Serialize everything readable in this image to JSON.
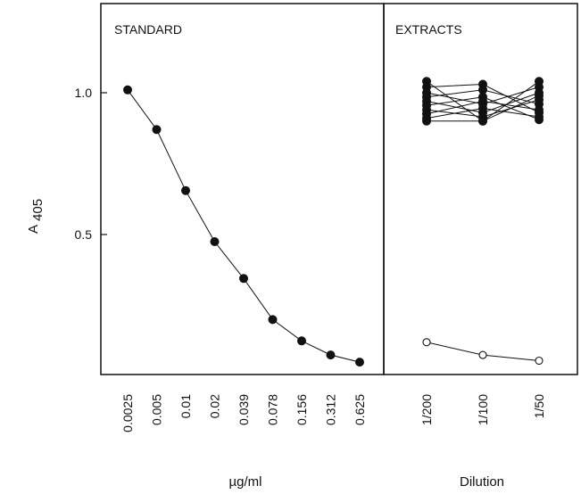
{
  "chart_data": {
    "type": "line",
    "ylabel_main": "A",
    "ylabel_sub": "405",
    "y_ticks": [
      {
        "value": 1.0,
        "label": "1.0"
      },
      {
        "value": 0.5,
        "label": "0.5"
      }
    ],
    "ylim": [
      0,
      1.3
    ],
    "panels": [
      {
        "id": "standard",
        "title": "STANDARD",
        "xlabel": "µg/ml",
        "categories": [
          "0.0025",
          "0.005",
          "0.01",
          "0.02",
          "0.039",
          "0.078",
          "0.156",
          "0.312",
          "0.625"
        ],
        "series": [
          {
            "marker": "filled",
            "values": [
              1.01,
              0.87,
              0.655,
              0.475,
              0.345,
              0.2,
              0.125,
              0.075,
              0.05
            ]
          }
        ]
      },
      {
        "id": "extracts",
        "title": "EXTRACTS",
        "xlabel": "Dilution",
        "categories": [
          "1/200",
          "1/100",
          "1/50"
        ],
        "series": [
          {
            "marker": "filled",
            "values": [
              1.04,
              0.9,
              1.04
            ]
          },
          {
            "marker": "filled",
            "values": [
              1.02,
              1.03,
              0.93
            ]
          },
          {
            "marker": "filled",
            "values": [
              1.0,
              0.96,
              1.02
            ]
          },
          {
            "marker": "filled",
            "values": [
              0.985,
              1.01,
              0.96
            ]
          },
          {
            "marker": "filled",
            "values": [
              0.97,
              0.93,
              1.0
            ]
          },
          {
            "marker": "filled",
            "values": [
              0.955,
              0.985,
              0.905
            ]
          },
          {
            "marker": "filled",
            "values": [
              0.94,
              0.915,
              0.975
            ]
          },
          {
            "marker": "filled",
            "values": [
              0.925,
              0.97,
              0.94
            ]
          },
          {
            "marker": "filled",
            "values": [
              0.91,
              0.945,
              0.915
            ]
          },
          {
            "marker": "filled",
            "values": [
              0.9,
              0.9,
              0.99
            ]
          },
          {
            "marker": "open",
            "values": [
              0.12,
              0.075,
              0.055
            ]
          }
        ]
      }
    ]
  }
}
